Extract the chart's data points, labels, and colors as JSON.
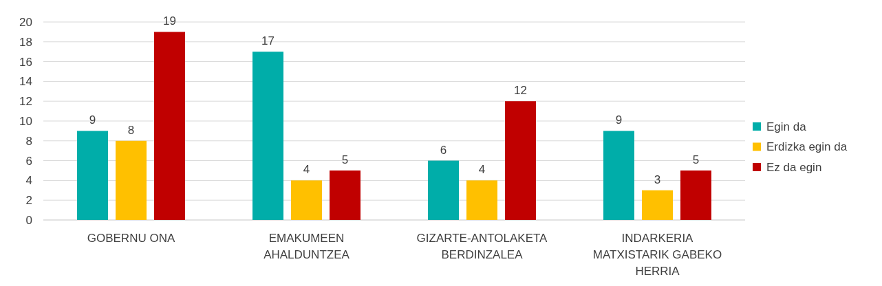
{
  "chart_data": {
    "type": "bar",
    "categories": [
      "GOBERNU ONA",
      "EMAKUMEEN AHALDUNTZEA",
      "GIZARTE-ANTOLAKETA BERDINZALEA",
      "INDARKERIA MATXISTARIK GABEKO HERRIA"
    ],
    "series": [
      {
        "name": "Egin da",
        "color": "#00ada9",
        "values": [
          9,
          17,
          6,
          9
        ]
      },
      {
        "name": "Erdizka egin da",
        "color": "#ffc000",
        "values": [
          8,
          4,
          4,
          3
        ]
      },
      {
        "name": "Ez da egin",
        "color": "#c00000",
        "values": [
          19,
          5,
          12,
          5
        ]
      }
    ],
    "ylim": [
      0,
      20
    ],
    "yticks": [
      0,
      2,
      4,
      6,
      8,
      10,
      12,
      14,
      16,
      18,
      20
    ],
    "grid": "y",
    "legend": "right",
    "data_labels": true
  }
}
